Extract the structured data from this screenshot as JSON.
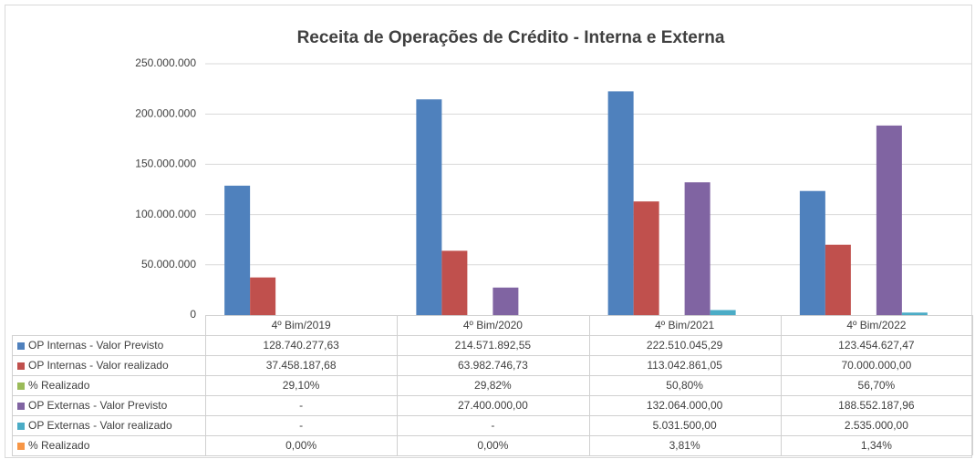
{
  "chart_data": {
    "type": "bar",
    "title": "Receita de Operações de Crédito - Interna e Externa",
    "categories": [
      "4º Bim/2019",
      "4º Bim/2020",
      "4º Bim/2021",
      "4º Bim/2022"
    ],
    "series": [
      {
        "name": "OP Internas - Valor Previsto",
        "color": "#4f81bd",
        "values": [
          128740277.63,
          214571892.55,
          222510045.29,
          123454627.47
        ],
        "value_labels": [
          "128.740.277,63",
          "214.571.892,55",
          "222.510.045,29",
          "123.454.627,47"
        ]
      },
      {
        "name": "OP Internas - Valor realizado",
        "color": "#c0504d",
        "values": [
          37458187.68,
          63982746.73,
          113042861.05,
          70000000.0
        ],
        "value_labels": [
          "37.458.187,68",
          "63.982.746,73",
          "113.042.861,05",
          "70.000.000,00"
        ]
      },
      {
        "name": "% Realizado",
        "color": "#9bbb59",
        "values": [
          29.1,
          29.82,
          50.8,
          56.7
        ],
        "value_labels": [
          "29,10%",
          "29,82%",
          "50,80%",
          "56,70%"
        ]
      },
      {
        "name": "OP Externas - Valor Previsto",
        "color": "#8064a2",
        "values": [
          null,
          27400000.0,
          132064000.0,
          188552187.96
        ],
        "value_labels": [
          "-",
          "27.400.000,00",
          "132.064.000,00",
          "188.552.187,96"
        ]
      },
      {
        "name": "OP Externas - Valor realizado",
        "color": "#4bacc6",
        "values": [
          null,
          null,
          5031500.0,
          2535000.0
        ],
        "value_labels": [
          "-",
          "-",
          "5.031.500,00",
          "2.535.000,00"
        ]
      },
      {
        "name": "% Realizado",
        "color": "#f79646",
        "values": [
          0,
          0,
          3.81,
          1.34
        ],
        "value_labels": [
          "0,00%",
          "0,00%",
          "3,81%",
          "1,34%"
        ]
      }
    ],
    "ylim": [
      0,
      250000000
    ],
    "yticks": [
      0,
      {
        "value": 50000000,
        "label": "50.000.000"
      },
      {
        "value": 100000000,
        "label": "100.000.000"
      },
      {
        "value": 150000000,
        "label": "150.000.000"
      },
      {
        "value": 200000000,
        "label": "200.000.000"
      },
      {
        "value": 250000000,
        "label": "250.000.000"
      }
    ],
    "grid": true
  }
}
